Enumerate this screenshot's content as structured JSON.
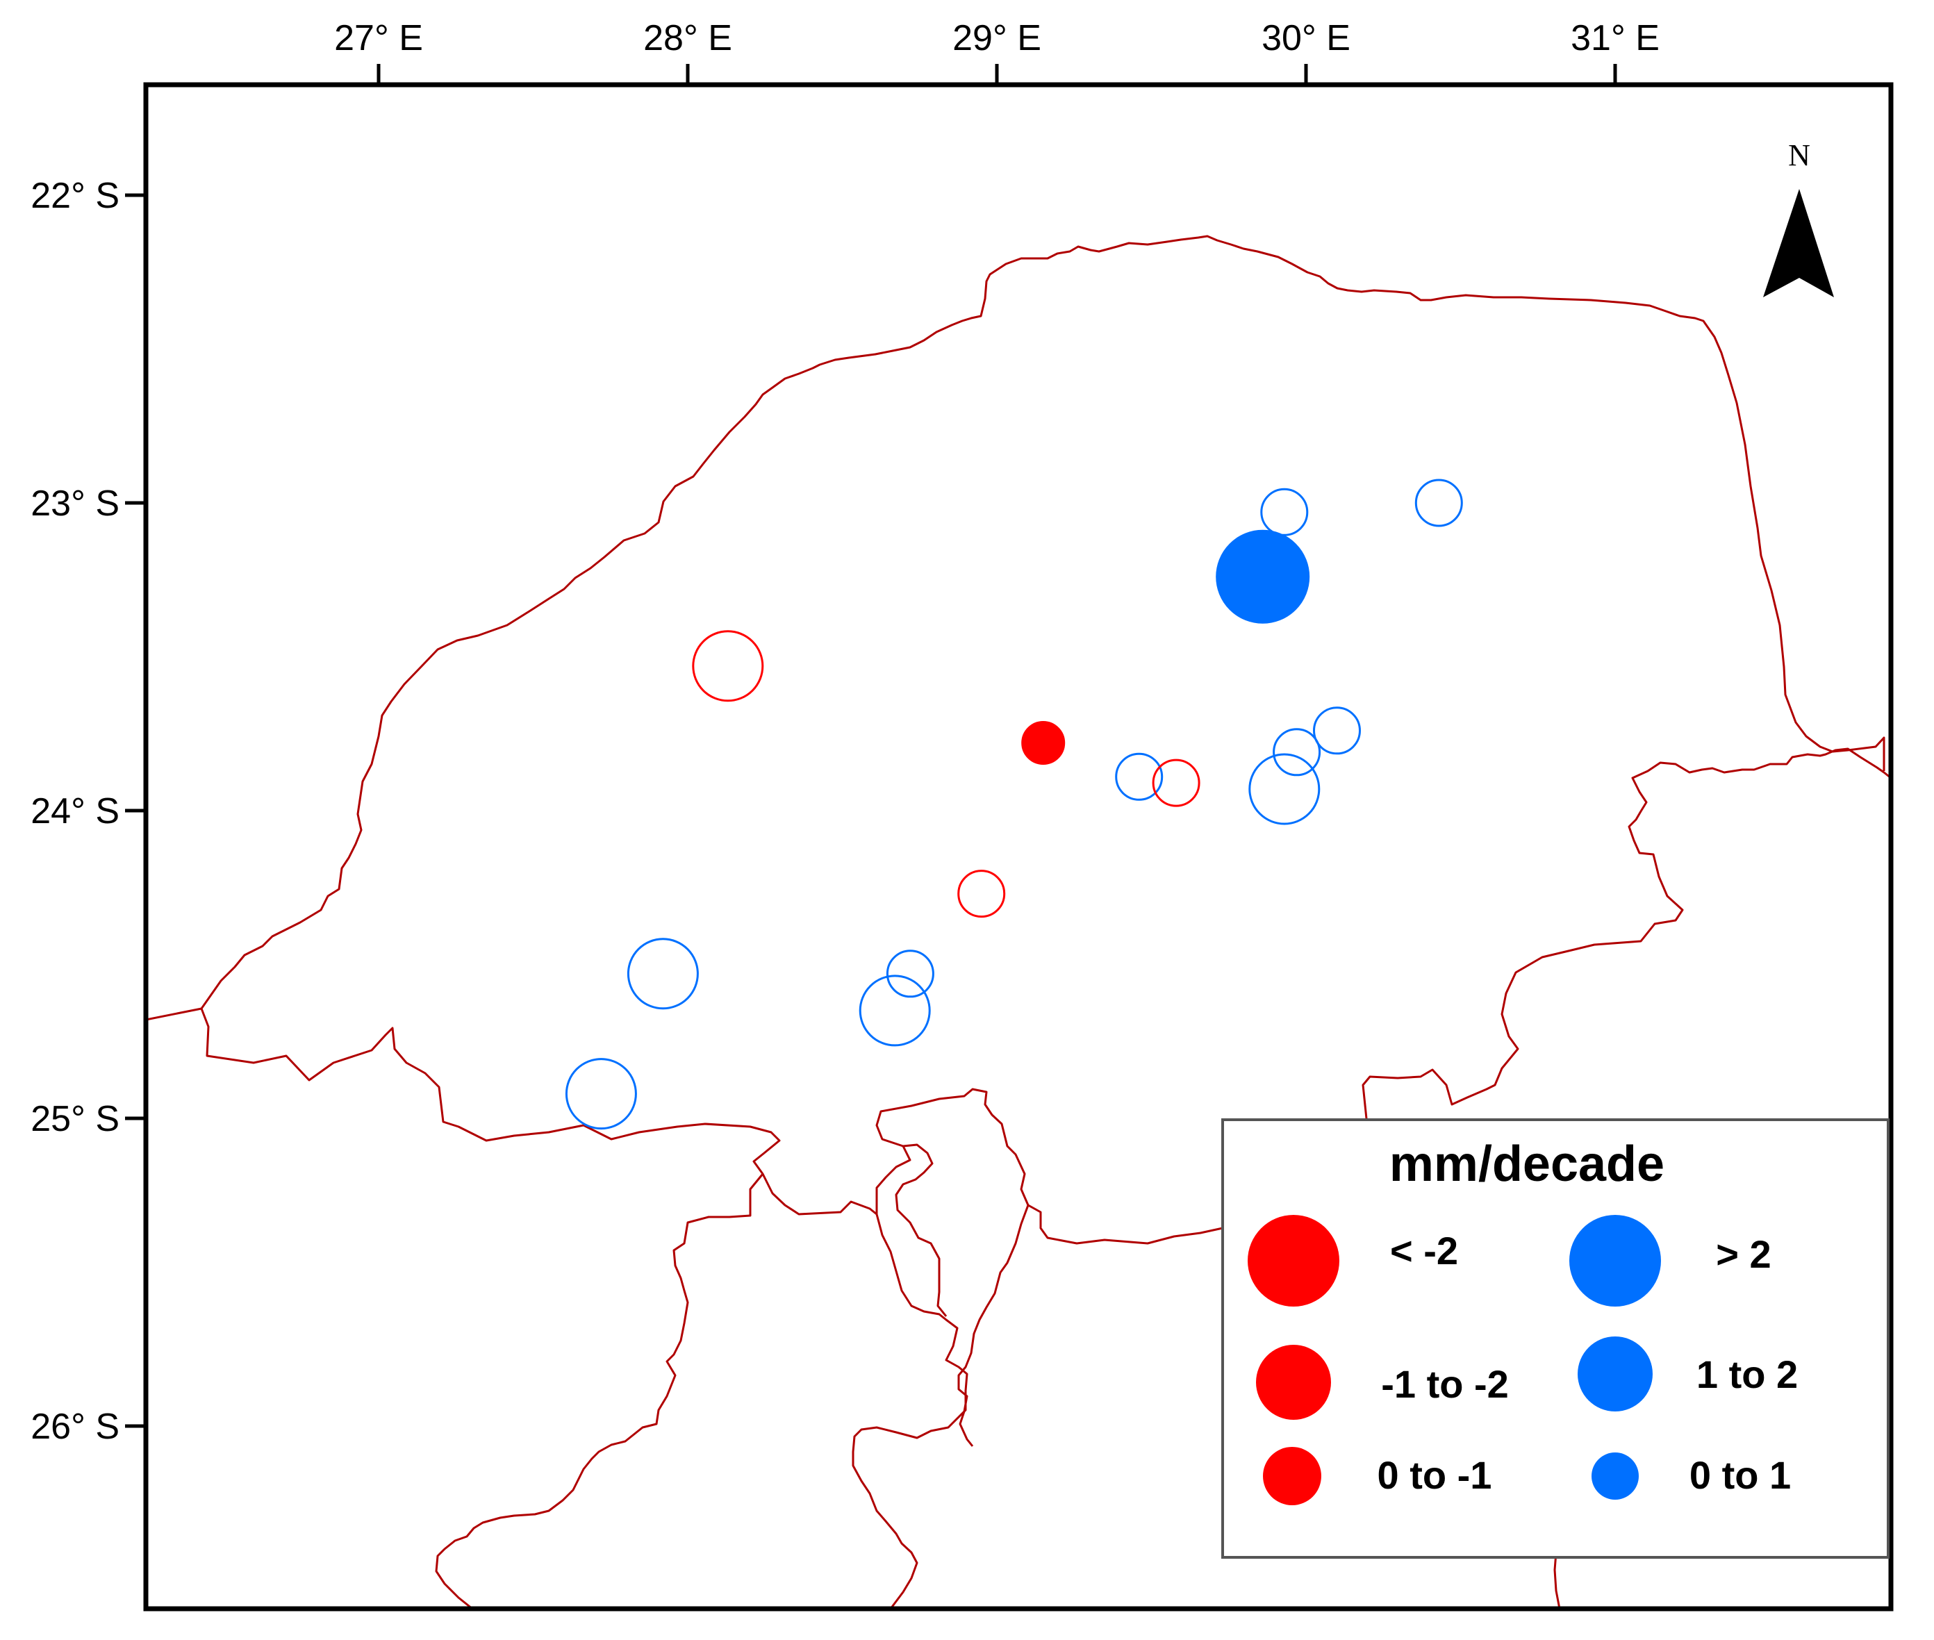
{
  "map": {
    "x_ticks": [
      {
        "value": 27,
        "label": "27° E"
      },
      {
        "value": 28,
        "label": "28° E"
      },
      {
        "value": 29,
        "label": "29° E"
      },
      {
        "value": 30,
        "label": "30° E"
      },
      {
        "value": 31,
        "label": "31° E"
      }
    ],
    "y_ticks": [
      {
        "value": -22,
        "label": "22° S"
      },
      {
        "value": -23,
        "label": "23° S"
      },
      {
        "value": -24,
        "label": "24° S"
      },
      {
        "value": -25,
        "label": "25° S"
      },
      {
        "value": -26,
        "label": "26° S"
      }
    ],
    "north_label": "N",
    "colors": {
      "negative": "#ff0000",
      "positive": "#0070ff",
      "boundary": "#b00000",
      "frame": "#000000"
    }
  },
  "legend": {
    "title": "mm/decade",
    "items": [
      {
        "label": "< -2",
        "sign": "negative",
        "class": "large"
      },
      {
        "label": "> 2",
        "sign": "positive",
        "class": "large"
      },
      {
        "label": "-1 to -2",
        "sign": "negative",
        "class": "medium"
      },
      {
        "label": "1 to 2",
        "sign": "positive",
        "class": "medium"
      },
      {
        "label": "0 to -1",
        "sign": "negative",
        "class": "small"
      },
      {
        "label": "0 to 1",
        "sign": "positive",
        "class": "small"
      }
    ]
  },
  "stations": [
    {
      "lon": 29.93,
      "lat": -23.03,
      "sign": "positive",
      "class": "small",
      "significant": false
    },
    {
      "lon": 30.43,
      "lat": -23.0,
      "sign": "positive",
      "class": "small",
      "significant": false
    },
    {
      "lon": 29.86,
      "lat": -23.24,
      "sign": "positive",
      "class": "large",
      "significant": true
    },
    {
      "lon": 28.13,
      "lat": -23.53,
      "sign": "negative",
      "class": "medium",
      "significant": false
    },
    {
      "lon": 29.15,
      "lat": -23.78,
      "sign": "negative",
      "class": "small",
      "significant": true
    },
    {
      "lon": 30.1,
      "lat": -23.74,
      "sign": "positive",
      "class": "small",
      "significant": false
    },
    {
      "lon": 29.97,
      "lat": -23.81,
      "sign": "positive",
      "class": "small",
      "significant": false
    },
    {
      "lon": 29.46,
      "lat": -23.89,
      "sign": "positive",
      "class": "small",
      "significant": false
    },
    {
      "lon": 29.58,
      "lat": -23.91,
      "sign": "negative",
      "class": "small",
      "significant": false
    },
    {
      "lon": 29.93,
      "lat": -23.93,
      "sign": "positive",
      "class": "medium",
      "significant": false
    },
    {
      "lon": 28.95,
      "lat": -24.27,
      "sign": "negative",
      "class": "small",
      "significant": false
    },
    {
      "lon": 27.92,
      "lat": -24.53,
      "sign": "positive",
      "class": "medium",
      "significant": false
    },
    {
      "lon": 28.72,
      "lat": -24.53,
      "sign": "positive",
      "class": "small",
      "significant": false
    },
    {
      "lon": 28.67,
      "lat": -24.65,
      "sign": "positive",
      "class": "medium",
      "significant": false
    },
    {
      "lon": 27.72,
      "lat": -24.92,
      "sign": "positive",
      "class": "medium",
      "significant": false
    }
  ]
}
